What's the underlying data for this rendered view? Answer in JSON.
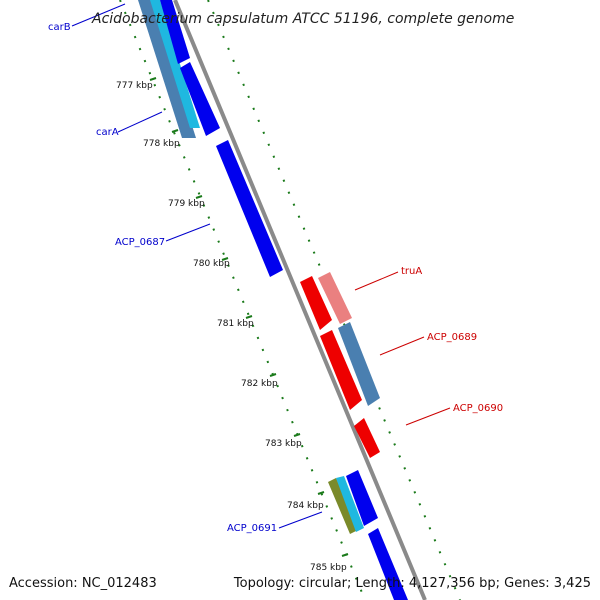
{
  "title": "Acidobacterium capsulatum ATCC 51196, complete genome",
  "accession": "Accession: NC_012483",
  "topology": "Topology: circular; Length: 4,127,356 bp; Genes: 3,425",
  "ticks": [
    "777 kbp",
    "778 kbp",
    "779 kbp",
    "780 kbp",
    "781 kbp",
    "782 kbp",
    "783 kbp",
    "784 kbp",
    "785 kbp"
  ],
  "colors": {
    "forward_strand_label": "#0000cc",
    "reverse_strand_label": "#cc0000",
    "backbone": "#8a8a8a",
    "ticks": "#1a7a1a",
    "blue_gene": "#0000ee",
    "red_gene": "#ee0000",
    "steel_gene": "#4a7fb0",
    "cyan_gene": "#1fb8e0",
    "pink_gene": "#ea8080",
    "olive_gene": "#7a8a2a"
  },
  "genes": {
    "forward": [
      "carB",
      "carA",
      "ACP_0687",
      "ACP_0691"
    ],
    "reverse": [
      "truA",
      "ACP_0689",
      "ACP_0690"
    ]
  }
}
